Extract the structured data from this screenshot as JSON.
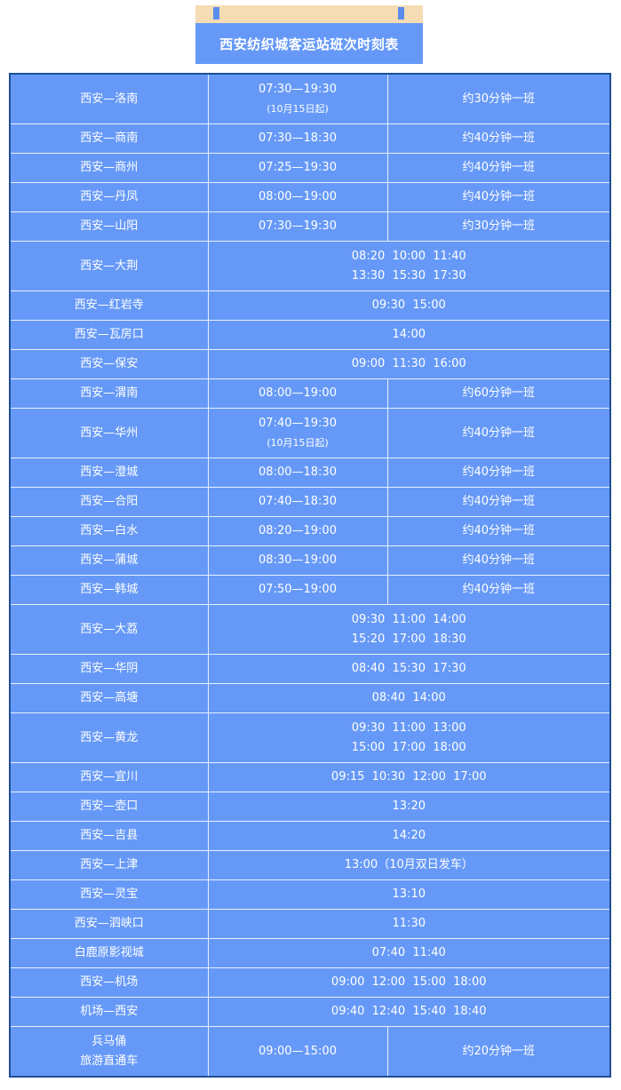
{
  "title": "西安纺织城客运站班次时刻表",
  "colors": {
    "cell_bg": "#6699f7",
    "border": "#1d4f95",
    "tab_band": "#f6dcb4"
  },
  "rows": [
    {
      "route": [
        "西安—洛南"
      ],
      "times": [
        "07:30—19:30",
        "(10月15日起)"
      ],
      "interval": "约30分钟一班"
    },
    {
      "route": [
        "西安—商南"
      ],
      "times": [
        "07:30—18:30"
      ],
      "interval": "约40分钟一班"
    },
    {
      "route": [
        "西安—商州"
      ],
      "times": [
        "07:25—19:30"
      ],
      "interval": "约40分钟一班"
    },
    {
      "route": [
        "西安—丹凤"
      ],
      "times": [
        "08:00—19:00"
      ],
      "interval": "约40分钟一班"
    },
    {
      "route": [
        "西安—山阳"
      ],
      "times": [
        "07:30—19:30"
      ],
      "interval": "约30分钟一班"
    },
    {
      "route": [
        "西安—大荆"
      ],
      "times": [
        "08:20  10:00  11:40",
        "13:30  15:30  17:30"
      ]
    },
    {
      "route": [
        "西安—红岩寺"
      ],
      "times": [
        "09:30  15:00"
      ]
    },
    {
      "route": [
        "西安—瓦房口"
      ],
      "times": [
        "14:00"
      ]
    },
    {
      "route": [
        "西安—保安"
      ],
      "times": [
        "09:00  11:30  16:00"
      ]
    },
    {
      "route": [
        "西安—渭南"
      ],
      "times": [
        "08:00—19:00"
      ],
      "interval": "约60分钟一班"
    },
    {
      "route": [
        "西安—华州"
      ],
      "times": [
        "07:40—19:30",
        "(10月15日起)"
      ],
      "interval": "约40分钟一班"
    },
    {
      "route": [
        "西安—澄城"
      ],
      "times": [
        "08:00—18:30"
      ],
      "interval": "约40分钟一班"
    },
    {
      "route": [
        "西安—合阳"
      ],
      "times": [
        "07:40—18:30"
      ],
      "interval": "约40分钟一班"
    },
    {
      "route": [
        "西安—白水"
      ],
      "times": [
        "08:20—19:00"
      ],
      "interval": "约40分钟一班"
    },
    {
      "route": [
        "西安—蒲城"
      ],
      "times": [
        "08:30—19:00"
      ],
      "interval": "约40分钟一班"
    },
    {
      "route": [
        "西安—韩城"
      ],
      "times": [
        "07:50—19:00"
      ],
      "interval": "约40分钟一班"
    },
    {
      "route": [
        "西安—大荔"
      ],
      "times": [
        "09:30  11:00  14:00",
        "15:20  17:00  18:30"
      ]
    },
    {
      "route": [
        "西安—华阴"
      ],
      "times": [
        "08:40  15:30  17:30"
      ]
    },
    {
      "route": [
        "西安—高塘"
      ],
      "times": [
        "08:40  14:00"
      ]
    },
    {
      "route": [
        "西安—黄龙"
      ],
      "times": [
        "09:30  11:00  13:00",
        "15:00  17:00  18:00"
      ]
    },
    {
      "route": [
        "西安—宜川"
      ],
      "times": [
        "09:15  10:30  12:00  17:00"
      ]
    },
    {
      "route": [
        "西安—壶口"
      ],
      "times": [
        "13:20"
      ]
    },
    {
      "route": [
        "西安—吉县"
      ],
      "times": [
        "14:20"
      ]
    },
    {
      "route": [
        "西安—上津"
      ],
      "times": [
        "13:00（10月双日发车）"
      ]
    },
    {
      "route": [
        "西安—灵宝"
      ],
      "times": [
        "13:10"
      ]
    },
    {
      "route": [
        "西安—泗峡口"
      ],
      "times": [
        "11:30"
      ]
    },
    {
      "route": [
        "白鹿原影视城"
      ],
      "times": [
        "07:40  11:40"
      ]
    },
    {
      "route": [
        "西安—机场"
      ],
      "times": [
        "09:00  12:00  15:00  18:00"
      ]
    },
    {
      "route": [
        "机场—西安"
      ],
      "times": [
        "09:40  12:40  15:40  18:40"
      ]
    },
    {
      "route": [
        "兵马俑",
        "旅游直通车"
      ],
      "times": [
        "09:00—15:00"
      ],
      "interval": "约20分钟一班"
    }
  ]
}
